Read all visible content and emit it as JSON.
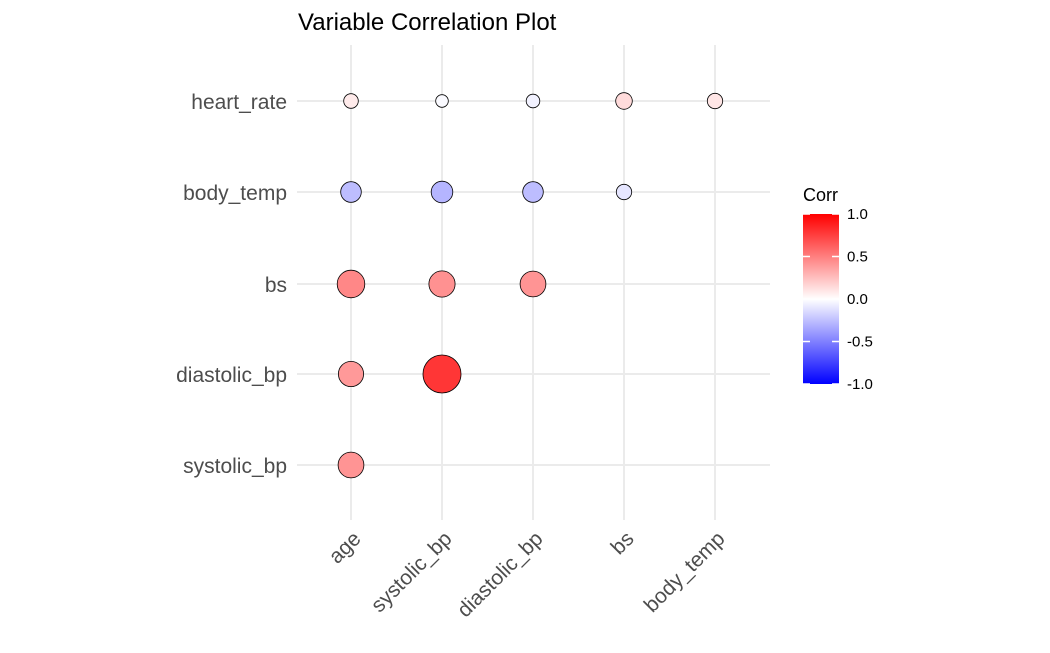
{
  "chart_data": {
    "type": "scatter",
    "title": "Variable Correlation Plot",
    "x_categories": [
      "age",
      "systolic_bp",
      "diastolic_bp",
      "bs",
      "body_temp"
    ],
    "y_categories": [
      "systolic_bp",
      "diastolic_bp",
      "bs",
      "body_temp",
      "heart_rate"
    ],
    "points": [
      {
        "x": "age",
        "y": "systolic_bp",
        "corr": 0.42
      },
      {
        "x": "age",
        "y": "diastolic_bp",
        "corr": 0.4
      },
      {
        "x": "systolic_bp",
        "y": "diastolic_bp",
        "corr": 0.79
      },
      {
        "x": "age",
        "y": "bs",
        "corr": 0.47
      },
      {
        "x": "systolic_bp",
        "y": "bs",
        "corr": 0.43
      },
      {
        "x": "diastolic_bp",
        "y": "bs",
        "corr": 0.42
      },
      {
        "x": "age",
        "y": "body_temp",
        "corr": -0.26
      },
      {
        "x": "systolic_bp",
        "y": "body_temp",
        "corr": -0.29
      },
      {
        "x": "diastolic_bp",
        "y": "body_temp",
        "corr": -0.26
      },
      {
        "x": "bs",
        "y": "body_temp",
        "corr": -0.1
      },
      {
        "x": "age",
        "y": "heart_rate",
        "corr": 0.08
      },
      {
        "x": "systolic_bp",
        "y": "heart_rate",
        "corr": -0.02
      },
      {
        "x": "diastolic_bp",
        "y": "heart_rate",
        "corr": -0.05
      },
      {
        "x": "bs",
        "y": "heart_rate",
        "corr": 0.14
      },
      {
        "x": "body_temp",
        "y": "heart_rate",
        "corr": 0.1
      }
    ],
    "legend": {
      "title": "Corr",
      "position": "right",
      "breaks": [
        "1.0",
        "0.5",
        "0.0",
        "-0.5",
        "-1.0"
      ],
      "limits": [
        -1,
        1
      ],
      "colors": {
        "low": "#0000ff",
        "mid": "#ffffff",
        "high": "#ff0000"
      }
    },
    "grid": true
  }
}
